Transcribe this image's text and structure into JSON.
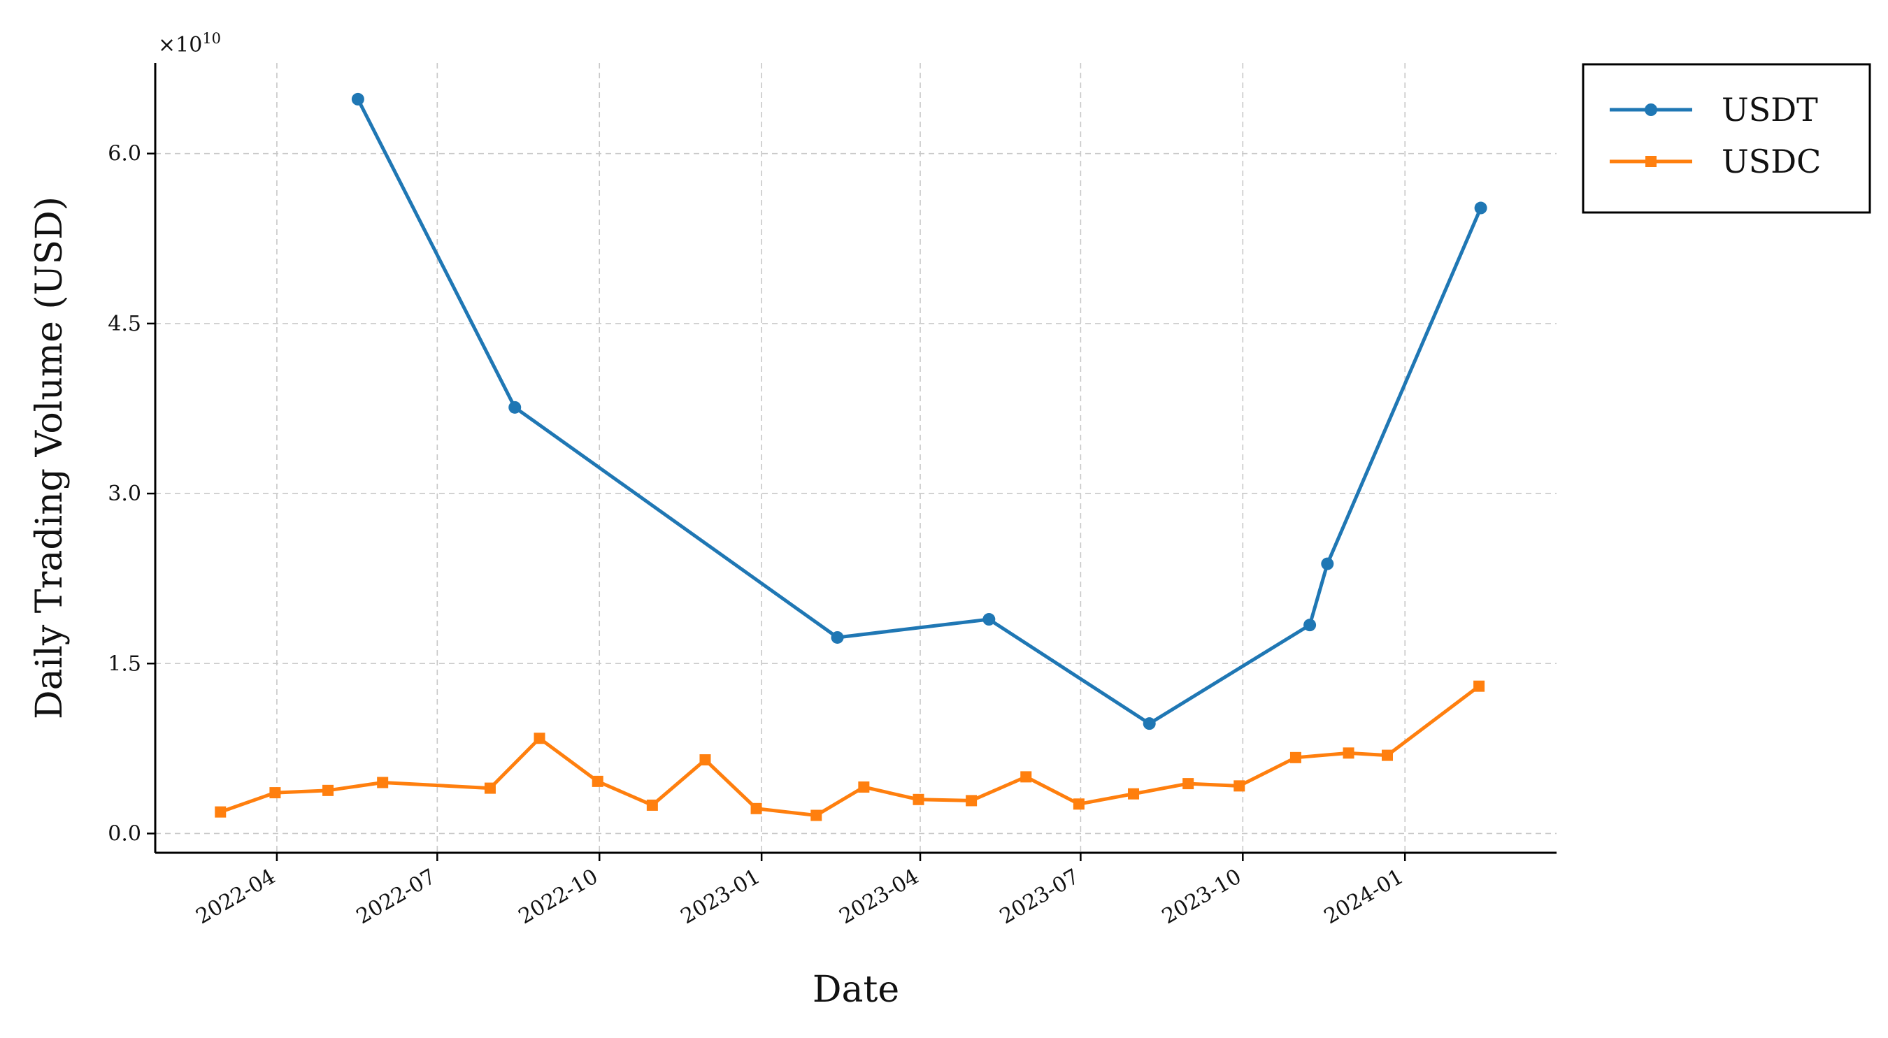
{
  "chart_data": {
    "type": "line",
    "xlabel": "Date",
    "ylabel": "Daily Trading Volume (USD)",
    "y_multiplier_label": "×10",
    "y_multiplier_exponent": "10",
    "x_ticks": [
      "2022-04",
      "2022-07",
      "2022-10",
      "2023-01",
      "2023-04",
      "2023-07",
      "2023-10",
      "2024-01"
    ],
    "y_ticks": [
      "0.0",
      "1.5",
      "3.0",
      "4.5",
      "6.0"
    ],
    "y_scale": 10000000000,
    "ylim": [
      -0.17,
      6.8
    ],
    "xlim": [
      "2022-01-22",
      "2024-03-27"
    ],
    "grid": true,
    "legend_position": "outside-top-right",
    "series": [
      {
        "name": "USDT",
        "color": "#1f77b4",
        "marker": "circle",
        "x": [
          "2022-05-17",
          "2022-08-14",
          "2023-02-13",
          "2023-05-10",
          "2023-08-09",
          "2023-11-08",
          "2023-11-18",
          "2024-02-13"
        ],
        "y": [
          6.48,
          3.76,
          1.73,
          1.89,
          0.97,
          1.84,
          2.38,
          5.52
        ]
      },
      {
        "name": "USDC",
        "color": "#ff7f0e",
        "marker": "square",
        "x": [
          "2022-02-28",
          "2022-03-31",
          "2022-04-30",
          "2022-05-31",
          "2022-07-31",
          "2022-08-28",
          "2022-09-30",
          "2022-10-31",
          "2022-11-30",
          "2022-12-29",
          "2023-02-01",
          "2023-02-28",
          "2023-03-31",
          "2023-04-30",
          "2023-05-31",
          "2023-06-30",
          "2023-07-31",
          "2023-08-31",
          "2023-09-29",
          "2023-10-31",
          "2023-11-30",
          "2023-12-22",
          "2024-02-12"
        ],
        "y": [
          0.19,
          0.36,
          0.38,
          0.45,
          0.4,
          0.84,
          0.46,
          0.25,
          0.65,
          0.22,
          0.16,
          0.41,
          0.3,
          0.29,
          0.5,
          0.26,
          0.35,
          0.44,
          0.42,
          0.67,
          0.71,
          0.69,
          1.3
        ]
      }
    ]
  }
}
